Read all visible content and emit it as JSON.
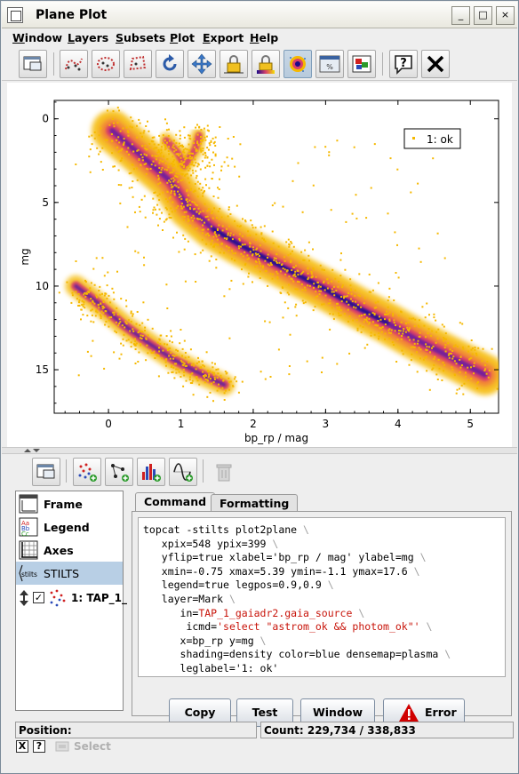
{
  "window": {
    "title": "Plane Plot",
    "controls": {
      "minimize": "_",
      "maximize": "□",
      "close": "×"
    }
  },
  "menu": {
    "items": [
      {
        "label": "Window",
        "accel": "W",
        "rest": "indow"
      },
      {
        "label": "Layers",
        "accel": "L",
        "rest": "ayers"
      },
      {
        "label": "Subsets",
        "accel": "S",
        "rest": "ubsets"
      },
      {
        "label": "Plot",
        "accel": "P",
        "rest": "lot"
      },
      {
        "label": "Export",
        "accel": "E",
        "rest": "xport"
      },
      {
        "label": "Help",
        "accel": "H",
        "rest": "elp"
      }
    ]
  },
  "toolbar": {
    "icons": [
      "new-window-icon",
      "draw-blob-subset-icon",
      "draw-ellipse-subset-icon",
      "draw-polygon-subset-icon",
      "replot-icon",
      "navigate-icon",
      "lock-axes-icon",
      "lock-aux-icon",
      "sketch-density-icon",
      "show-progress-icon",
      "legend-toggle-icon",
      "help-icon",
      "close-icon"
    ],
    "pressed": [
      "sketch-density-icon"
    ]
  },
  "chart_data": {
    "type": "scatter",
    "xlabel": "bp_rp / mag",
    "ylabel": "mg",
    "xlim": [
      -0.75,
      5.39
    ],
    "ylim": [
      -1.1,
      17.6
    ],
    "y_inverted": true,
    "x_ticks": [
      "0",
      "1",
      "2",
      "3",
      "4",
      "5"
    ],
    "x_tick_values": [
      0,
      1,
      2,
      3,
      4,
      5
    ],
    "y_ticks": [
      "0",
      "5",
      "10",
      "15"
    ],
    "y_tick_values": [
      0,
      5,
      10,
      15
    ],
    "grid": false,
    "legend": {
      "entries": [
        "1: ok"
      ],
      "placement": "top-right"
    },
    "rendering": "density shading, plasma colormap",
    "colors": {
      "low": "#f5b800",
      "mid": "#d8406a",
      "high": "#1a0a8a"
    },
    "series": [
      {
        "name": "1: ok",
        "main_sequence_ridge": [
          [
            0.05,
            0.7
          ],
          [
            0.4,
            2.0
          ],
          [
            0.85,
            3.7
          ],
          [
            1.1,
            5.3
          ],
          [
            1.45,
            6.6
          ],
          [
            1.8,
            7.5
          ],
          [
            2.2,
            8.4
          ],
          [
            2.6,
            9.3
          ],
          [
            3.0,
            10.2
          ],
          [
            3.45,
            11.3
          ],
          [
            3.85,
            12.2
          ],
          [
            4.3,
            13.3
          ],
          [
            4.75,
            14.3
          ],
          [
            5.2,
            15.3
          ]
        ],
        "white_dwarf_ridge": [
          [
            -0.45,
            10.0
          ],
          [
            -0.15,
            11.0
          ],
          [
            0.2,
            12.3
          ],
          [
            0.55,
            13.4
          ],
          [
            0.9,
            14.4
          ],
          [
            1.25,
            15.2
          ],
          [
            1.6,
            15.9
          ]
        ],
        "giant_branch": [
          [
            0.8,
            1.3
          ],
          [
            0.95,
            2.0
          ],
          [
            1.05,
            2.8
          ],
          [
            1.2,
            1.8
          ],
          [
            1.25,
            1.0
          ],
          [
            1.15,
            4.1
          ]
        ]
      }
    ]
  },
  "layer_toolbar": {
    "icons": [
      "new-control-window-icon",
      "add-position-plot-icon",
      "add-pair-plot-icon",
      "add-histogram-icon",
      "add-function-icon",
      "remove-layer-icon"
    ]
  },
  "controls": {
    "items": [
      {
        "label": "Frame",
        "icon": "frame-icon"
      },
      {
        "label": "Legend",
        "icon": "legend-icon"
      },
      {
        "label": "Axes",
        "icon": "axes-icon"
      },
      {
        "label": "STILTS",
        "icon": "stilts-icon"
      }
    ],
    "selected": "STILTS",
    "layer": {
      "label": "1: TAP_1_",
      "checked": true
    }
  },
  "tabs": [
    {
      "label": "Command",
      "active": true
    },
    {
      "label": "Formatting",
      "active": false
    }
  ],
  "command": {
    "lines": [
      {
        "pre": "topcat -stilts plot2plane",
        "red": "",
        "post": "",
        "bs": " \\"
      },
      {
        "pre": "   xpix=548 ypix=399",
        "red": "",
        "post": "",
        "bs": " \\"
      },
      {
        "pre": "   yflip=true xlabel='bp_rp / mag' ylabel=mg",
        "red": "",
        "post": "",
        "bs": " \\"
      },
      {
        "pre": "   xmin=-0.75 xmax=5.39 ymin=-1.1 ymax=17.6",
        "red": "",
        "post": "",
        "bs": " \\"
      },
      {
        "pre": "   legend=true legpos=0.9,0.9",
        "red": "",
        "post": "",
        "bs": " \\"
      },
      {
        "pre": "   layer=Mark",
        "red": "",
        "post": "",
        "bs": " \\"
      },
      {
        "pre": "      in=",
        "red": "TAP_1_gaiadr2.gaia_source",
        "post": "",
        "bs": " \\"
      },
      {
        "pre": "       icmd=",
        "red": "'select \"astrom_ok && photom_ok\"'",
        "post": "",
        "bs": " \\"
      },
      {
        "pre": "      x=bp_rp y=mg",
        "red": "",
        "post": "",
        "bs": " \\"
      },
      {
        "pre": "      shading=density color=blue densemap=plasma",
        "red": "",
        "post": "",
        "bs": " \\"
      },
      {
        "pre": "      leglabel='1: ok'",
        "red": "",
        "post": "",
        "bs": ""
      }
    ],
    "buttons": {
      "copy": "Copy",
      "test": "Test",
      "window": "Window",
      "error": "Error"
    }
  },
  "status": {
    "position_label": "Position:",
    "count": "Count: 229,734 / 338,833"
  },
  "bottom": {
    "close_box": "X",
    "help_box": "?",
    "select_label": "Select"
  }
}
